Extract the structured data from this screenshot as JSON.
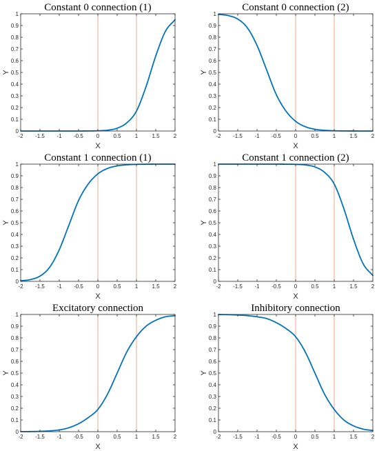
{
  "colors": {
    "curve": "#0072bd",
    "vline": "#e8a88a",
    "axis": "#262626",
    "background": "#ffffff"
  },
  "chart_data": [
    {
      "type": "line",
      "title": "Constant 0 connection (1)",
      "xlabel": "X",
      "ylabel": "Y",
      "xlim": [
        -2,
        2
      ],
      "ylim": [
        0,
        1
      ],
      "x_ticks": [
        -2,
        -1.5,
        -1,
        -0.5,
        0,
        0.5,
        1,
        1.5,
        2
      ],
      "x_tick_labels": [
        "-2",
        "-1.5",
        "-1",
        "-0.5",
        "0",
        "0.5",
        "1",
        "1.5",
        "2"
      ],
      "y_ticks": [
        0,
        0.1,
        0.2,
        0.3,
        0.4,
        0.5,
        0.6,
        0.7,
        0.8,
        0.9,
        1
      ],
      "y_tick_labels": [
        "0",
        "0.1",
        "0.2",
        "0.3",
        "0.4",
        "0.5",
        "0.6",
        "0.7",
        "0.8",
        "0.9",
        "1"
      ],
      "vertical_lines": [
        0,
        1
      ],
      "grid": false,
      "series": [
        {
          "x": [
            -2,
            -1.75,
            -1.5,
            -1.25,
            -1,
            -0.75,
            -0.5,
            -0.25,
            0,
            0.25,
            0.5,
            0.75,
            1,
            1.25,
            1.5,
            1.75,
            2
          ],
          "y": [
            0,
            0,
            0,
            0,
            0,
            0,
            0.0001,
            0.0006,
            0.002,
            0.007,
            0.024,
            0.07,
            0.17,
            0.38,
            0.64,
            0.85,
            0.95
          ]
        }
      ]
    },
    {
      "type": "line",
      "title": "Constant 0 connection (2)",
      "xlabel": "X",
      "ylabel": "Y",
      "xlim": [
        -2,
        2
      ],
      "ylim": [
        0,
        1
      ],
      "x_ticks": [
        -2,
        -1.5,
        -1,
        -0.5,
        0,
        0.5,
        1,
        1.5,
        2
      ],
      "x_tick_labels": [
        "-2",
        "-1.5",
        "-1",
        "-0.5",
        "0",
        "0.5",
        "1",
        "1.5",
        "2"
      ],
      "y_ticks": [
        0,
        0.1,
        0.2,
        0.3,
        0.4,
        0.5,
        0.6,
        0.7,
        0.8,
        0.9,
        1
      ],
      "y_tick_labels": [
        "0",
        "0.1",
        "0.2",
        "0.3",
        "0.4",
        "0.5",
        "0.6",
        "0.7",
        "0.8",
        "0.9",
        "1"
      ],
      "vertical_lines": [
        0,
        1
      ],
      "grid": false,
      "series": [
        {
          "x": [
            -2,
            -1.75,
            -1.5,
            -1.25,
            -1,
            -0.75,
            -0.5,
            -0.25,
            0,
            0.25,
            0.5,
            0.75,
            1,
            1.25,
            1.5,
            1.75,
            2
          ],
          "y": [
            0.995,
            0.985,
            0.955,
            0.88,
            0.73,
            0.52,
            0.31,
            0.17,
            0.083,
            0.037,
            0.015,
            0.006,
            0.0022,
            0.0008,
            0.0003,
            0.0001,
            0
          ]
        }
      ]
    },
    {
      "type": "line",
      "title": "Constant 1 connection (1)",
      "xlabel": "X",
      "ylabel": "Y",
      "xlim": [
        -2,
        2
      ],
      "ylim": [
        0,
        1
      ],
      "x_ticks": [
        -2,
        -1.5,
        -1,
        -0.5,
        0,
        0.5,
        1,
        1.5,
        2
      ],
      "x_tick_labels": [
        "-2",
        "-1.5",
        "-1",
        "-0.5",
        "0",
        "0.5",
        "1",
        "1.5",
        "2"
      ],
      "y_ticks": [
        0,
        0.1,
        0.2,
        0.3,
        0.4,
        0.5,
        0.6,
        0.7,
        0.8,
        0.9,
        1
      ],
      "y_tick_labels": [
        "0",
        "0.1",
        "0.2",
        "0.3",
        "0.4",
        "0.5",
        "0.6",
        "0.7",
        "0.8",
        "0.9",
        "1"
      ],
      "vertical_lines": [
        0,
        1
      ],
      "grid": false,
      "series": [
        {
          "x": [
            -2,
            -1.75,
            -1.5,
            -1.25,
            -1,
            -0.75,
            -0.5,
            -0.25,
            0,
            0.25,
            0.5,
            0.75,
            1,
            1.25,
            1.5,
            1.75,
            2
          ],
          "y": [
            0.005,
            0.015,
            0.045,
            0.12,
            0.27,
            0.48,
            0.69,
            0.83,
            0.917,
            0.963,
            0.985,
            0.994,
            0.998,
            0.999,
            1,
            1,
            1
          ]
        }
      ]
    },
    {
      "type": "line",
      "title": "Constant 1 connection (2)",
      "xlabel": "X",
      "ylabel": "Y",
      "xlim": [
        -2,
        2
      ],
      "ylim": [
        0,
        1
      ],
      "x_ticks": [
        -2,
        -1.5,
        -1,
        -0.5,
        0,
        0.5,
        1,
        1.5,
        2
      ],
      "x_tick_labels": [
        "-2",
        "-1.5",
        "-1",
        "-0.5",
        "0",
        "0.5",
        "1",
        "1.5",
        "2"
      ],
      "y_ticks": [
        0,
        0.1,
        0.2,
        0.3,
        0.4,
        0.5,
        0.6,
        0.7,
        0.8,
        0.9,
        1
      ],
      "y_tick_labels": [
        "0",
        "0.1",
        "0.2",
        "0.3",
        "0.4",
        "0.5",
        "0.6",
        "0.7",
        "0.8",
        "0.9",
        "1"
      ],
      "vertical_lines": [
        0,
        1
      ],
      "grid": false,
      "series": [
        {
          "x": [
            -2,
            -1.75,
            -1.5,
            -1.25,
            -1,
            -0.75,
            -0.5,
            -0.25,
            0,
            0.25,
            0.5,
            0.75,
            1,
            1.25,
            1.5,
            1.75,
            2
          ],
          "y": [
            1,
            1,
            1,
            1,
            1,
            1,
            0.9999,
            0.9994,
            0.998,
            0.993,
            0.976,
            0.93,
            0.83,
            0.62,
            0.36,
            0.15,
            0.05
          ]
        }
      ]
    },
    {
      "type": "line",
      "title": "Excitatory connection",
      "xlabel": "X",
      "ylabel": "Y",
      "xlim": [
        -2,
        2
      ],
      "ylim": [
        0,
        1
      ],
      "x_ticks": [
        -2,
        -1.5,
        -1,
        -0.5,
        0,
        0.5,
        1,
        1.5,
        2
      ],
      "x_tick_labels": [
        "-2",
        "-1.5",
        "-1",
        "-0.5",
        "0",
        "0.5",
        "1",
        "1.5",
        "2"
      ],
      "y_ticks": [
        0,
        0.1,
        0.2,
        0.3,
        0.4,
        0.5,
        0.6,
        0.7,
        0.8,
        0.9,
        1
      ],
      "y_tick_labels": [
        "0",
        "0.1",
        "0.2",
        "0.3",
        "0.4",
        "0.5",
        "0.6",
        "0.7",
        "0.8",
        "0.9",
        "1"
      ],
      "vertical_lines": [
        0,
        1
      ],
      "grid": false,
      "series": [
        {
          "x": [
            -2,
            -1.75,
            -1.5,
            -1.25,
            -1,
            -0.75,
            -0.5,
            -0.25,
            0,
            0.25,
            0.5,
            0.75,
            1,
            1.25,
            1.5,
            1.75,
            2
          ],
          "y": [
            0.0005,
            0.0012,
            0.003,
            0.007,
            0.015,
            0.034,
            0.068,
            0.12,
            0.19,
            0.32,
            0.5,
            0.68,
            0.81,
            0.9,
            0.95,
            0.98,
            0.99
          ]
        }
      ]
    },
    {
      "type": "line",
      "title": "Inhibitory connection",
      "xlabel": "X",
      "ylabel": "Y",
      "xlim": [
        -2,
        2
      ],
      "ylim": [
        0,
        1
      ],
      "x_ticks": [
        -2,
        -1.5,
        -1,
        -0.5,
        0,
        0.5,
        1,
        1.5,
        2
      ],
      "x_tick_labels": [
        "-2",
        "-1.5",
        "-1",
        "-0.5",
        "0",
        "0.5",
        "1",
        "1.5",
        "2"
      ],
      "y_ticks": [
        0,
        0.1,
        0.2,
        0.3,
        0.4,
        0.5,
        0.6,
        0.7,
        0.8,
        0.9,
        1
      ],
      "y_tick_labels": [
        "0",
        "0.1",
        "0.2",
        "0.3",
        "0.4",
        "0.5",
        "0.6",
        "0.7",
        "0.8",
        "0.9",
        "1"
      ],
      "vertical_lines": [
        0,
        1
      ],
      "grid": false,
      "series": [
        {
          "x": [
            -2,
            -1.75,
            -1.5,
            -1.25,
            -1,
            -0.75,
            -0.5,
            -0.25,
            0,
            0.25,
            0.5,
            0.75,
            1,
            1.25,
            1.5,
            1.75,
            2
          ],
          "y": [
            0.999,
            0.998,
            0.995,
            0.99,
            0.98,
            0.965,
            0.93,
            0.88,
            0.81,
            0.68,
            0.5,
            0.32,
            0.19,
            0.1,
            0.05,
            0.022,
            0.01
          ]
        }
      ]
    }
  ]
}
